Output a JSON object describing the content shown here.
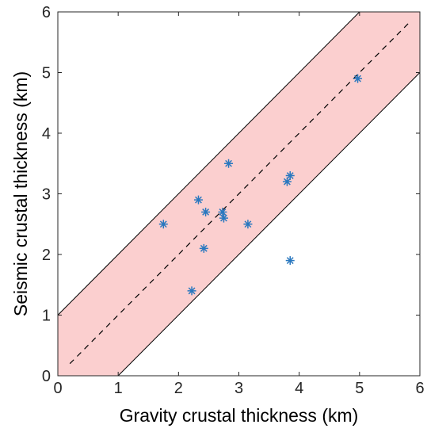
{
  "chart_data": {
    "type": "scatter",
    "title": "",
    "xlabel": "Gravity crustal thickness (km)",
    "ylabel": "Seismic crustal thickness (km)",
    "xlim": [
      0,
      6
    ],
    "ylim": [
      0,
      6
    ],
    "xticks": [
      "0",
      "1",
      "2",
      "3",
      "4",
      "5",
      "6"
    ],
    "yticks": [
      "0",
      "1",
      "2",
      "3",
      "4",
      "5",
      "6"
    ],
    "grid": false,
    "legend": "none",
    "marker": "asterisk",
    "reference_line": {
      "slope": 1,
      "intercept": 0,
      "x_range": [
        0.2,
        5.85
      ],
      "style": "dashed",
      "color": "#000000"
    },
    "band": {
      "offset": 1,
      "fill": "#fbcfcf",
      "edge_color": "#000000"
    },
    "series": [
      {
        "color": "#2a78bf",
        "x": [
          1.75,
          2.22,
          2.33,
          2.42,
          2.45,
          2.73,
          2.75,
          2.83,
          3.15,
          3.8,
          3.85,
          3.85,
          4.97
        ],
        "y": [
          2.5,
          1.4,
          2.9,
          2.1,
          2.7,
          2.7,
          2.6,
          3.5,
          2.5,
          3.2,
          3.3,
          1.9,
          4.9
        ]
      }
    ]
  }
}
